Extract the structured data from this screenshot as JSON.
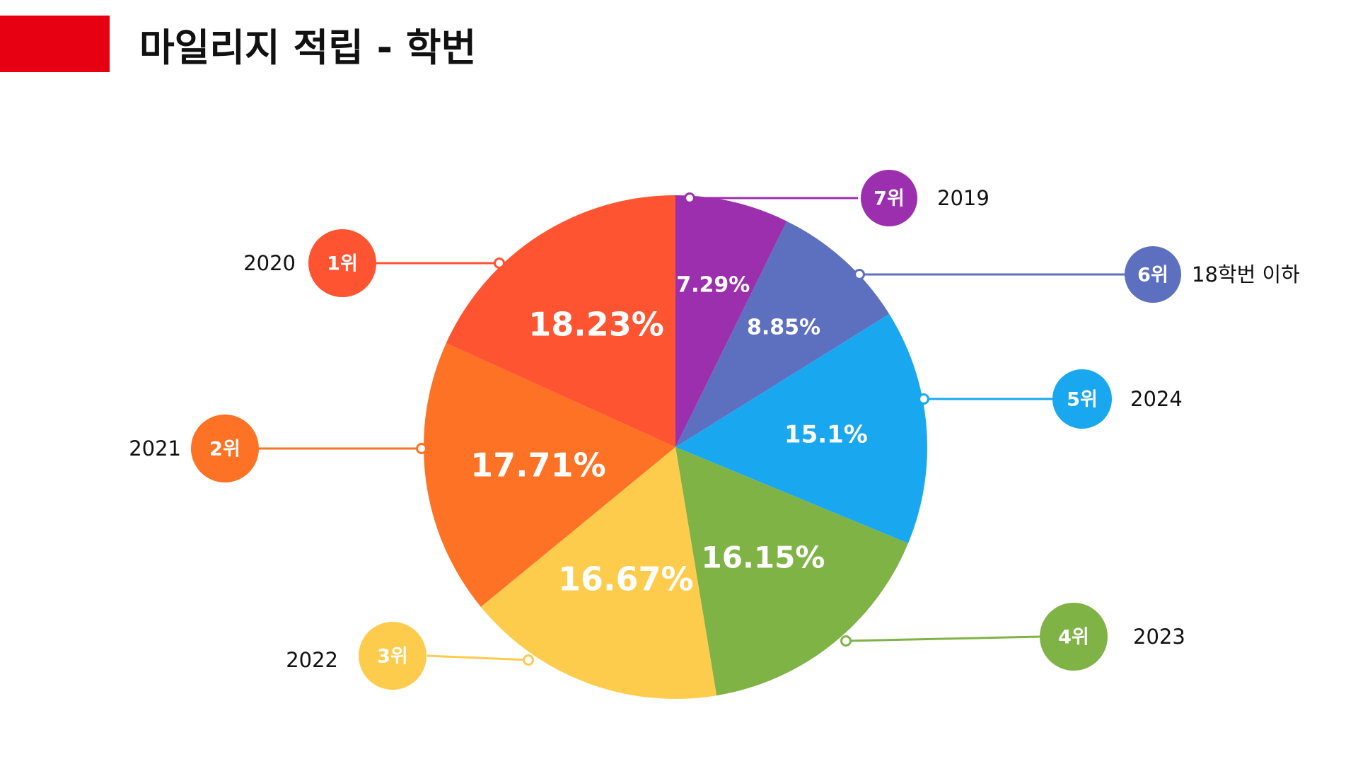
{
  "header": {
    "title": "마일리지 적립 - 학번",
    "accent_color": "#E60012"
  },
  "chart_data": {
    "type": "pie",
    "title": "마일리지 적립 - 학번",
    "start": "12 o'clock, clockwise",
    "slices": [
      {
        "label": "2019",
        "value": 7.29,
        "display": "7.29%",
        "rank": "7위",
        "color": "#9B2FAE"
      },
      {
        "label": "18학번 이하",
        "value": 8.85,
        "display": "8.85%",
        "rank": "6위",
        "color": "#5D6FBF"
      },
      {
        "label": "2024",
        "value": 15.1,
        "display": "15.1%",
        "rank": "5위",
        "color": "#19A8F0"
      },
      {
        "label": "2023",
        "value": 16.15,
        "display": "16.15%",
        "rank": "4위",
        "color": "#80B346"
      },
      {
        "label": "2022",
        "value": 16.67,
        "display": "16.67%",
        "rank": "3위",
        "color": "#FECC4C"
      },
      {
        "label": "2021",
        "value": 17.71,
        "display": "17.71%",
        "rank": "2위",
        "color": "#FE7225"
      },
      {
        "label": "2020",
        "value": 18.23,
        "display": "18.23%",
        "rank": "1위",
        "color": "#FE5431"
      }
    ]
  }
}
